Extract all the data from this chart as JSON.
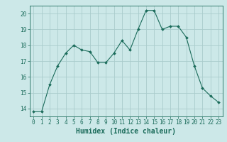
{
  "x": [
    0,
    1,
    2,
    3,
    4,
    5,
    6,
    7,
    8,
    9,
    10,
    11,
    12,
    13,
    14,
    15,
    16,
    17,
    18,
    19,
    20,
    21,
    22,
    23
  ],
  "y": [
    13.8,
    13.8,
    15.5,
    16.7,
    17.5,
    18.0,
    17.7,
    17.6,
    16.9,
    16.9,
    17.5,
    18.3,
    17.7,
    19.0,
    20.2,
    20.2,
    19.0,
    19.2,
    19.2,
    18.5,
    16.7,
    15.3,
    14.8,
    14.4
  ],
  "line_color": "#1a6b5a",
  "marker": "D",
  "marker_size": 2.0,
  "bg_color": "#cce8e8",
  "grid_color": "#aacccc",
  "xlabel": "Humidex (Indice chaleur)",
  "xlim": [
    -0.5,
    23.5
  ],
  "ylim": [
    13.5,
    20.5
  ],
  "yticks": [
    14,
    15,
    16,
    17,
    18,
    19,
    20
  ],
  "xticks": [
    0,
    1,
    2,
    3,
    4,
    5,
    6,
    7,
    8,
    9,
    10,
    11,
    12,
    13,
    14,
    15,
    16,
    17,
    18,
    19,
    20,
    21,
    22,
    23
  ],
  "tick_color": "#1a6b5a",
  "label_fontsize": 7,
  "tick_fontsize": 5.5
}
